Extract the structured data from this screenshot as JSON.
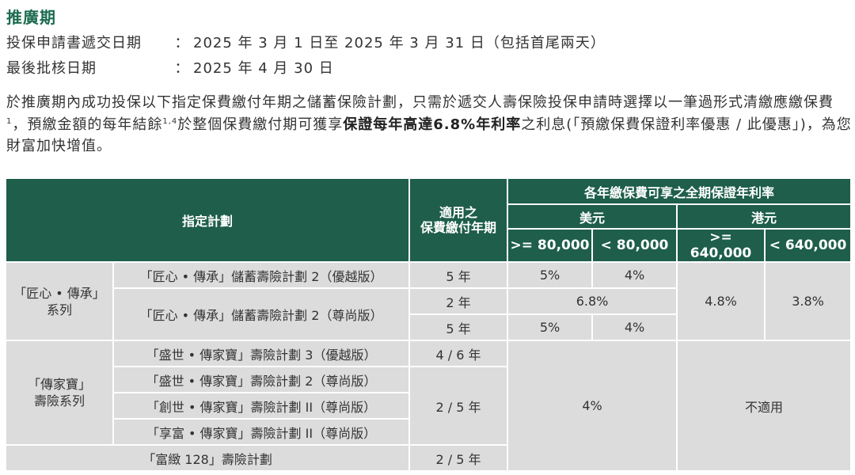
{
  "heading": "推廣期",
  "info": [
    {
      "label": "投保申請書遞交日期",
      "colon": "：",
      "value": "2025 年 3 月 1 日至 2025 年 3 月 31 日（包括首尾兩天）"
    },
    {
      "label": "最後批核日期",
      "colon": "：",
      "value": "2025 年 4 月 30 日"
    }
  ],
  "paragraph": {
    "part1": "於推廣期內成功投保以下指定保費繳付年期之儲蓄保險計劃，只需於遞交人壽保險投保申請時選擇以一筆過形式清繳應繳保費",
    "sup1": "1",
    "part2": "，預繳金額的每年結餘",
    "sup2": "1,4",
    "part3": "於整個保費繳付期可獲享",
    "bold": "保證每年高達6.8%年利率",
    "part4": "之利息(「預繳保費保證利率優惠 / 此優惠」)，為您財富加快增值。"
  },
  "table": {
    "header": {
      "plan": "指定計劃",
      "period_line1": "適用之",
      "period_line2": "保費繳付年期",
      "rate_group": "各年繳保費可享之全期保證年利率",
      "usd": "美元",
      "hkd": "港元",
      "usd_hi": ">= 80,000",
      "usd_lo": "< 80,000",
      "hkd_hi": ">= 640,000",
      "hkd_lo": "< 640,000"
    },
    "series1": {
      "line1": "「匠心 • 傳承」",
      "line2": "系列"
    },
    "series2": {
      "line1": "「傳家寶」",
      "line2": "壽險系列"
    },
    "rows": {
      "plan1": "「匠心 • 傳承」儲蓄壽險計劃 2（優越版）",
      "plan2": "「匠心 • 傳承」儲蓄壽險計劃 2（尊尚版）",
      "plan3": "「盛世 • 傳家寶」壽險計劃 3（優越版）",
      "plan4": "「盛世 • 傳家寶」壽險計劃 2（尊尚版）",
      "plan5": "「創世 • 傳家寶」壽險計劃 II（尊尚版）",
      "plan6": "「享富 • 傳家寶」壽險計劃 II（尊尚版）",
      "plan7": "「富緻 128」壽險計劃"
    },
    "periods": {
      "p1": "5 年",
      "p2a": "2 年",
      "p2b": "5 年",
      "p3": "4 / 6 年",
      "p456": "2 / 5 年",
      "p7": "2 / 5 年"
    },
    "rates": {
      "r1_usd_hi": "5%",
      "r1_usd_lo": "4%",
      "r2a_usd": "6.8%",
      "r2b_usd_hi": "5%",
      "r2b_usd_lo": "4%",
      "hkd_hi_series1": "4.8%",
      "hkd_lo_series1": "3.8%",
      "usd_series2": "4%",
      "hkd_series2": "不適用"
    }
  },
  "colors": {
    "accent_green": "#1c6b4f",
    "header_bg": "#1e5e4a",
    "cell_bg": "#dcdcdc"
  }
}
